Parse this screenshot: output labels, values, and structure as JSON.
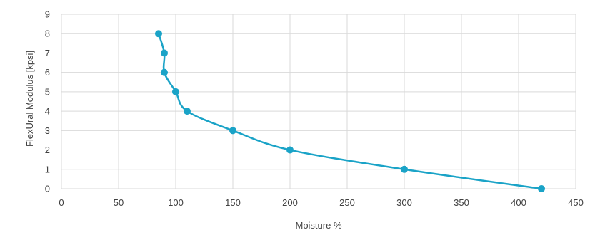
{
  "chart_data": {
    "type": "line",
    "title": "",
    "xlabel": "Moisture %",
    "ylabel": "FlexUral Modulus  [kpsi]",
    "xlim": [
      0,
      450
    ],
    "ylim": [
      0,
      9
    ],
    "x_ticks": [
      "0",
      "50",
      "100",
      "150",
      "200",
      "250",
      "300",
      "350",
      "400",
      "450"
    ],
    "y_ticks": [
      "0",
      "1",
      "2",
      "3",
      "4",
      "5",
      "6",
      "7",
      "8",
      "9"
    ],
    "grid": true,
    "legend": "none",
    "series": [
      {
        "x": [
          85,
          90,
          90,
          100,
          110,
          150,
          200,
          300,
          420
        ],
        "y": [
          8,
          7,
          6,
          5,
          4,
          3,
          2,
          1,
          0
        ],
        "color": "#1aa3c7",
        "smooth": true,
        "markers": true
      }
    ]
  }
}
